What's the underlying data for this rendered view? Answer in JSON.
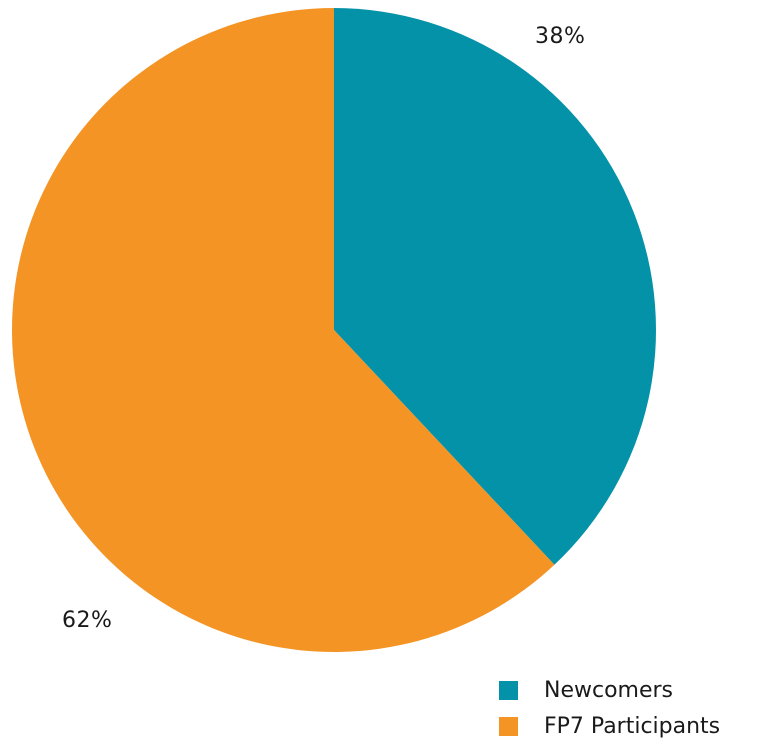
{
  "chart_data": {
    "type": "pie",
    "slices": [
      {
        "name": "Newcomers",
        "value": 38,
        "label": "38%",
        "color": "#0492a8"
      },
      {
        "name": "FP7 Participants",
        "value": 62,
        "label": "62%",
        "color": "#f39424"
      }
    ],
    "start_angle": "12 o'clock",
    "direction": "clockwise",
    "legend_position": "bottom-right"
  },
  "legend": {
    "items": [
      {
        "label": "Newcomers",
        "color": "#0492a8"
      },
      {
        "label": "FP7 Participants",
        "color": "#f39424"
      }
    ]
  }
}
